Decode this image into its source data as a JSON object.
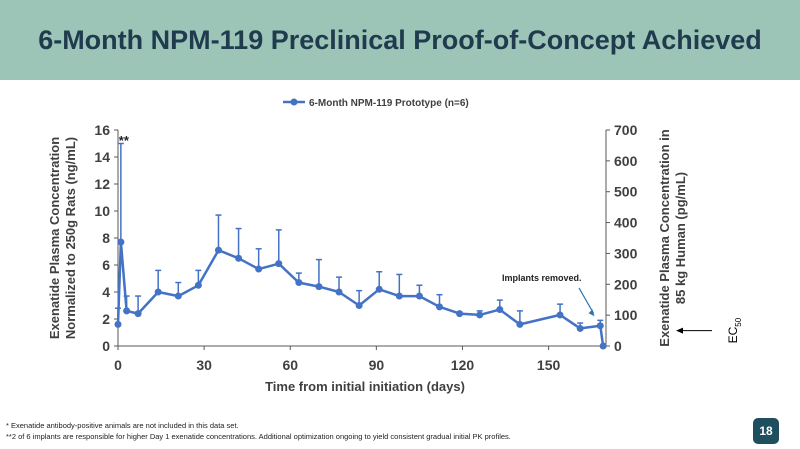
{
  "title": "6-Month NPM-119 Preclinical Proof-of-Concept Achieved",
  "chart_data": {
    "type": "line",
    "legend": "6-Month NPM-119 Prototype (n=6)",
    "legend_position": "top-center",
    "xlabel": "Time from initial initiation (days)",
    "ylabel_left": "Exenatide Plasma Concentration Normalized to 250g Rats (ng/mL)",
    "ylabel_left_lines": [
      "Exenatide Plasma Concentration",
      "Normalized to 250g Rats (ng/mL)"
    ],
    "ylabel_right": "Exenatide Plasma Concentration in 85 kg Human (pg/mL)",
    "ylabel_right_lines": [
      "Exenatide Plasma Concentration in",
      "85 kg Human (pg/mL)"
    ],
    "xlim": [
      0,
      170
    ],
    "ylim_left": [
      0,
      16
    ],
    "ylim_right": [
      0,
      700
    ],
    "x_ticks": [
      0,
      30,
      60,
      90,
      120,
      150
    ],
    "y_left_ticks": [
      0,
      2,
      4,
      6,
      8,
      10,
      12,
      14,
      16
    ],
    "y_right_ticks": [
      0,
      100,
      200,
      300,
      400,
      500,
      600,
      700
    ],
    "series": [
      {
        "name": "6-Month NPM-119 Prototype (n=6)",
        "x": [
          0,
          1,
          3,
          7,
          14,
          21,
          28,
          35,
          42,
          49,
          56,
          63,
          70,
          77,
          84,
          91,
          98,
          105,
          112,
          119,
          126,
          133,
          140,
          154,
          161,
          168,
          169
        ],
        "y": [
          1.6,
          7.7,
          2.6,
          2.4,
          4.0,
          3.7,
          4.5,
          7.1,
          6.5,
          5.7,
          6.1,
          4.7,
          4.4,
          4.0,
          3.0,
          4.2,
          3.7,
          3.7,
          2.9,
          2.4,
          2.3,
          2.7,
          1.6,
          2.3,
          1.3,
          1.5,
          0.0
        ],
        "error_upper": [
          1.2,
          7.3,
          1.1,
          1.3,
          1.6,
          1.0,
          1.1,
          2.6,
          2.2,
          1.5,
          2.5,
          0.7,
          2.0,
          1.1,
          1.1,
          1.3,
          1.6,
          0.8,
          0.9,
          0.0,
          0.3,
          0.7,
          1.0,
          0.8,
          0.4,
          0.4,
          0.0
        ]
      }
    ],
    "annotations": [
      {
        "text": "**",
        "x": 1,
        "y": 15.2
      },
      {
        "text": "Implants removed.",
        "arrow_to_x": 166,
        "arrow_to_y": 2.2
      }
    ],
    "side_label": "EC50",
    "side_label_main": "EC",
    "side_label_sub": "50"
  },
  "footnotes": {
    "line1": "*  Exenatide antibody-positive animals are not included in this data set.",
    "line2": "**2 of 6 implants are responsible for higher Day 1 exenatide concentrations.  Additional optimization ongoing to yield consistent gradual initial PK profiles."
  },
  "page_number": "18",
  "colors": {
    "banner": "#9cc5b8",
    "series": "#4472c4",
    "title_text": "#1f3b4d",
    "axis_text": "#404040"
  }
}
